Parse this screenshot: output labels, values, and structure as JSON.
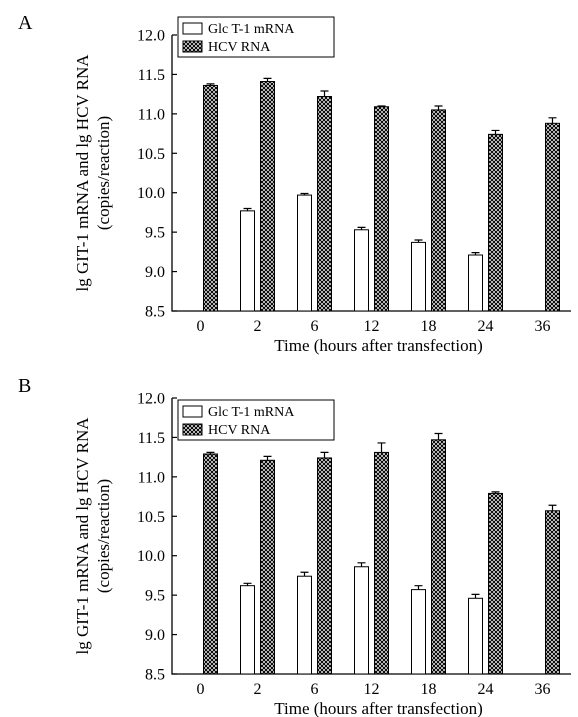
{
  "figure": {
    "panel_a_label": "A",
    "panel_b_label": "B"
  },
  "chart_data": [
    {
      "type": "bar",
      "panel": "A",
      "categories": [
        "0",
        "2",
        "6",
        "12",
        "18",
        "24",
        "36"
      ],
      "series": [
        {
          "name": "Glc T-1 mRNA",
          "values": [
            null,
            9.77,
            9.97,
            9.53,
            9.37,
            9.21,
            null
          ],
          "errors": [
            0,
            0.03,
            0.02,
            0.03,
            0.03,
            0.03,
            0
          ],
          "fill": "white"
        },
        {
          "name": "HCV RNA",
          "values": [
            11.36,
            11.41,
            11.22,
            11.09,
            11.05,
            10.74,
            10.88
          ],
          "errors": [
            0.02,
            0.04,
            0.07,
            0.01,
            0.05,
            0.05,
            0.07
          ],
          "fill": "crosshatch"
        }
      ],
      "title": "",
      "xlabel": "Time (hours after transfection)",
      "ylabel_line1": "lg GIT-1 mRNA and lg HCV RNA",
      "ylabel_line2": "(copies/reaction)",
      "ylim": [
        8.5,
        12.0
      ],
      "yticks": [
        "8.5",
        "9.0",
        "9.5",
        "10.0",
        "10.5",
        "11.0",
        "11.5",
        "12.0"
      ],
      "grid": false,
      "legend_position": "top-left"
    },
    {
      "type": "bar",
      "panel": "B",
      "categories": [
        "0",
        "2",
        "6",
        "12",
        "18",
        "24",
        "36"
      ],
      "series": [
        {
          "name": "Glc T-1 mRNA",
          "values": [
            null,
            9.62,
            9.74,
            9.86,
            9.57,
            9.46,
            null
          ],
          "errors": [
            0,
            0.03,
            0.05,
            0.05,
            0.05,
            0.05,
            0
          ],
          "fill": "white"
        },
        {
          "name": "HCV RNA",
          "values": [
            11.29,
            11.21,
            11.24,
            11.31,
            11.47,
            10.79,
            10.57
          ],
          "errors": [
            0.02,
            0.05,
            0.07,
            0.12,
            0.08,
            0.02,
            0.07
          ],
          "fill": "crosshatch"
        }
      ],
      "title": "",
      "xlabel": "Time (hours after transfection)",
      "ylabel_line1": "lg GIT-1 mRNA and lg HCV RNA",
      "ylabel_line2": "(copies/reaction)",
      "ylim": [
        8.5,
        12.0
      ],
      "yticks": [
        "8.5",
        "9.0",
        "9.5",
        "10.0",
        "10.5",
        "11.0",
        "11.5",
        "12.0"
      ],
      "grid": false,
      "legend_position": "top-left"
    }
  ]
}
